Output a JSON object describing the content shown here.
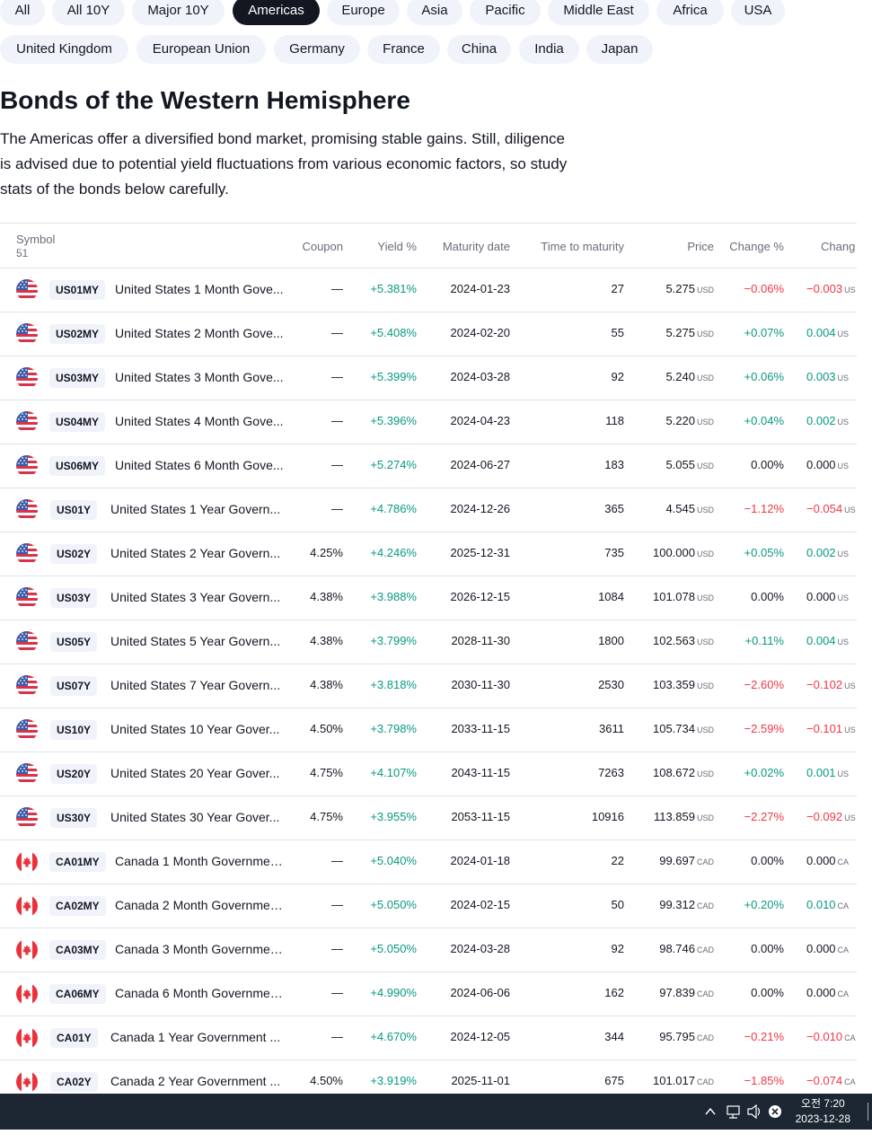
{
  "filters": [
    {
      "label": "All",
      "active": false
    },
    {
      "label": "All 10Y",
      "active": false
    },
    {
      "label": "Major 10Y",
      "active": false
    },
    {
      "label": "Americas",
      "active": true
    },
    {
      "label": "Europe",
      "active": false
    },
    {
      "label": "Asia",
      "active": false
    },
    {
      "label": "Pacific",
      "active": false
    },
    {
      "label": "Middle East",
      "active": false
    },
    {
      "label": "Africa",
      "active": false
    },
    {
      "label": "USA",
      "active": false
    },
    {
      "label": "United Kingdom",
      "active": false
    },
    {
      "label": "European Union",
      "active": false
    },
    {
      "label": "Germany",
      "active": false
    },
    {
      "label": "France",
      "active": false
    },
    {
      "label": "China",
      "active": false
    },
    {
      "label": "India",
      "active": false
    },
    {
      "label": "Japan",
      "active": false
    }
  ],
  "heading": "Bonds of the Western Hemisphere",
  "description": "The Americas offer a diversified bond market, promising stable gains. Still, diligence is advised due to potential yield fluctuations from various economic factors, so study stats of the bonds below carefully.",
  "table": {
    "headers": {
      "symbol": "Symbol",
      "count": "51",
      "coupon": "Coupon",
      "yield": "Yield %",
      "maturity": "Maturity date",
      "ttm": "Time to maturity",
      "price": "Price",
      "change_pct": "Change %",
      "change": "Chang"
    },
    "rows": [
      {
        "flag": "us-flag-icon",
        "ticker": "US01MY",
        "name": "United States 1 Month Gove...",
        "coupon": "—",
        "yield": "+5.381%",
        "maturity": "2024-01-23",
        "ttm": "27",
        "price": "5.275",
        "cur": "USD",
        "chg_pct": "−0.06%",
        "chg": "−0.003",
        "chg_cur": "US",
        "dir": "neg"
      },
      {
        "flag": "us-flag-icon",
        "ticker": "US02MY",
        "name": "United States 2 Month Gove...",
        "coupon": "—",
        "yield": "+5.408%",
        "maturity": "2024-02-20",
        "ttm": "55",
        "price": "5.275",
        "cur": "USD",
        "chg_pct": "+0.07%",
        "chg": "0.004",
        "chg_cur": "US",
        "dir": "pos"
      },
      {
        "flag": "us-flag-icon",
        "ticker": "US03MY",
        "name": "United States 3 Month Gove...",
        "coupon": "—",
        "yield": "+5.399%",
        "maturity": "2024-03-28",
        "ttm": "92",
        "price": "5.240",
        "cur": "USD",
        "chg_pct": "+0.06%",
        "chg": "0.003",
        "chg_cur": "US",
        "dir": "pos"
      },
      {
        "flag": "us-flag-icon",
        "ticker": "US04MY",
        "name": "United States 4 Month Gove...",
        "coupon": "—",
        "yield": "+5.396%",
        "maturity": "2024-04-23",
        "ttm": "118",
        "price": "5.220",
        "cur": "USD",
        "chg_pct": "+0.04%",
        "chg": "0.002",
        "chg_cur": "US",
        "dir": "pos"
      },
      {
        "flag": "us-flag-icon",
        "ticker": "US06MY",
        "name": "United States 6 Month Gove...",
        "coupon": "—",
        "yield": "+5.274%",
        "maturity": "2024-06-27",
        "ttm": "183",
        "price": "5.055",
        "cur": "USD",
        "chg_pct": "0.00%",
        "chg": "0.000",
        "chg_cur": "US",
        "dir": "neu"
      },
      {
        "flag": "us-flag-icon",
        "ticker": "US01Y",
        "name": "United States 1 Year Govern...",
        "coupon": "—",
        "yield": "+4.786%",
        "maturity": "2024-12-26",
        "ttm": "365",
        "price": "4.545",
        "cur": "USD",
        "chg_pct": "−1.12%",
        "chg": "−0.054",
        "chg_cur": "US",
        "dir": "neg"
      },
      {
        "flag": "us-flag-icon",
        "ticker": "US02Y",
        "name": "United States 2 Year Govern...",
        "coupon": "4.25%",
        "yield": "+4.246%",
        "maturity": "2025-12-31",
        "ttm": "735",
        "price": "100.000",
        "cur": "USD",
        "chg_pct": "+0.05%",
        "chg": "0.002",
        "chg_cur": "US",
        "dir": "pos"
      },
      {
        "flag": "us-flag-icon",
        "ticker": "US03Y",
        "name": "United States 3 Year Govern...",
        "coupon": "4.38%",
        "yield": "+3.988%",
        "maturity": "2026-12-15",
        "ttm": "1084",
        "price": "101.078",
        "cur": "USD",
        "chg_pct": "0.00%",
        "chg": "0.000",
        "chg_cur": "US",
        "dir": "neu"
      },
      {
        "flag": "us-flag-icon",
        "ticker": "US05Y",
        "name": "United States 5 Year Govern...",
        "coupon": "4.38%",
        "yield": "+3.799%",
        "maturity": "2028-11-30",
        "ttm": "1800",
        "price": "102.563",
        "cur": "USD",
        "chg_pct": "+0.11%",
        "chg": "0.004",
        "chg_cur": "US",
        "dir": "pos"
      },
      {
        "flag": "us-flag-icon",
        "ticker": "US07Y",
        "name": "United States 7 Year Govern...",
        "coupon": "4.38%",
        "yield": "+3.818%",
        "maturity": "2030-11-30",
        "ttm": "2530",
        "price": "103.359",
        "cur": "USD",
        "chg_pct": "−2.60%",
        "chg": "−0.102",
        "chg_cur": "US",
        "dir": "neg"
      },
      {
        "flag": "us-flag-icon",
        "ticker": "US10Y",
        "name": "United States 10 Year Gover...",
        "coupon": "4.50%",
        "yield": "+3.798%",
        "maturity": "2033-11-15",
        "ttm": "3611",
        "price": "105.734",
        "cur": "USD",
        "chg_pct": "−2.59%",
        "chg": "−0.101",
        "chg_cur": "US",
        "dir": "neg"
      },
      {
        "flag": "us-flag-icon",
        "ticker": "US20Y",
        "name": "United States 20 Year Gover...",
        "coupon": "4.75%",
        "yield": "+4.107%",
        "maturity": "2043-11-15",
        "ttm": "7263",
        "price": "108.672",
        "cur": "USD",
        "chg_pct": "+0.02%",
        "chg": "0.001",
        "chg_cur": "US",
        "dir": "pos"
      },
      {
        "flag": "us-flag-icon",
        "ticker": "US30Y",
        "name": "United States 30 Year Gover...",
        "coupon": "4.75%",
        "yield": "+3.955%",
        "maturity": "2053-11-15",
        "ttm": "10916",
        "price": "113.859",
        "cur": "USD",
        "chg_pct": "−2.27%",
        "chg": "−0.092",
        "chg_cur": "US",
        "dir": "neg"
      },
      {
        "flag": "canada-flag-icon",
        "ticker": "CA01MY",
        "name": "Canada 1 Month Governmen...",
        "coupon": "—",
        "yield": "+5.040%",
        "maturity": "2024-01-18",
        "ttm": "22",
        "price": "99.697",
        "cur": "CAD",
        "chg_pct": "0.00%",
        "chg": "0.000",
        "chg_cur": "CA",
        "dir": "neu"
      },
      {
        "flag": "canada-flag-icon",
        "ticker": "CA02MY",
        "name": "Canada 2 Month Governmen...",
        "coupon": "—",
        "yield": "+5.050%",
        "maturity": "2024-02-15",
        "ttm": "50",
        "price": "99.312",
        "cur": "CAD",
        "chg_pct": "+0.20%",
        "chg": "0.010",
        "chg_cur": "CA",
        "dir": "pos"
      },
      {
        "flag": "canada-flag-icon",
        "ticker": "CA03MY",
        "name": "Canada 3 Month Governmen...",
        "coupon": "—",
        "yield": "+5.050%",
        "maturity": "2024-03-28",
        "ttm": "92",
        "price": "98.746",
        "cur": "CAD",
        "chg_pct": "0.00%",
        "chg": "0.000",
        "chg_cur": "CA",
        "dir": "neu"
      },
      {
        "flag": "canada-flag-icon",
        "ticker": "CA06MY",
        "name": "Canada 6 Month Governmen...",
        "coupon": "—",
        "yield": "+4.990%",
        "maturity": "2024-06-06",
        "ttm": "162",
        "price": "97.839",
        "cur": "CAD",
        "chg_pct": "0.00%",
        "chg": "0.000",
        "chg_cur": "CA",
        "dir": "neu"
      },
      {
        "flag": "canada-flag-icon",
        "ticker": "CA01Y",
        "name": "Canada 1 Year Government ...",
        "coupon": "—",
        "yield": "+4.670%",
        "maturity": "2024-12-05",
        "ttm": "344",
        "price": "95.795",
        "cur": "CAD",
        "chg_pct": "−0.21%",
        "chg": "−0.010",
        "chg_cur": "CA",
        "dir": "neg"
      },
      {
        "flag": "canada-flag-icon",
        "ticker": "CA02Y",
        "name": "Canada 2 Year Government ...",
        "coupon": "4.50%",
        "yield": "+3.919%",
        "maturity": "2025-11-01",
        "ttm": "675",
        "price": "101.017",
        "cur": "CAD",
        "chg_pct": "−1.85%",
        "chg": "−0.074",
        "chg_cur": "CA",
        "dir": "neg"
      }
    ]
  },
  "colors": {
    "positive": "#089981",
    "negative": "#f23645",
    "active_chip": "#131722",
    "chip": "#f0f3fa"
  },
  "taskbar": {
    "tray_icons": [
      "chevron-up-icon",
      "network-icon",
      "volume-icon",
      "close-circle-icon"
    ],
    "time": "오전 7:20",
    "date": "2023-12-28"
  }
}
